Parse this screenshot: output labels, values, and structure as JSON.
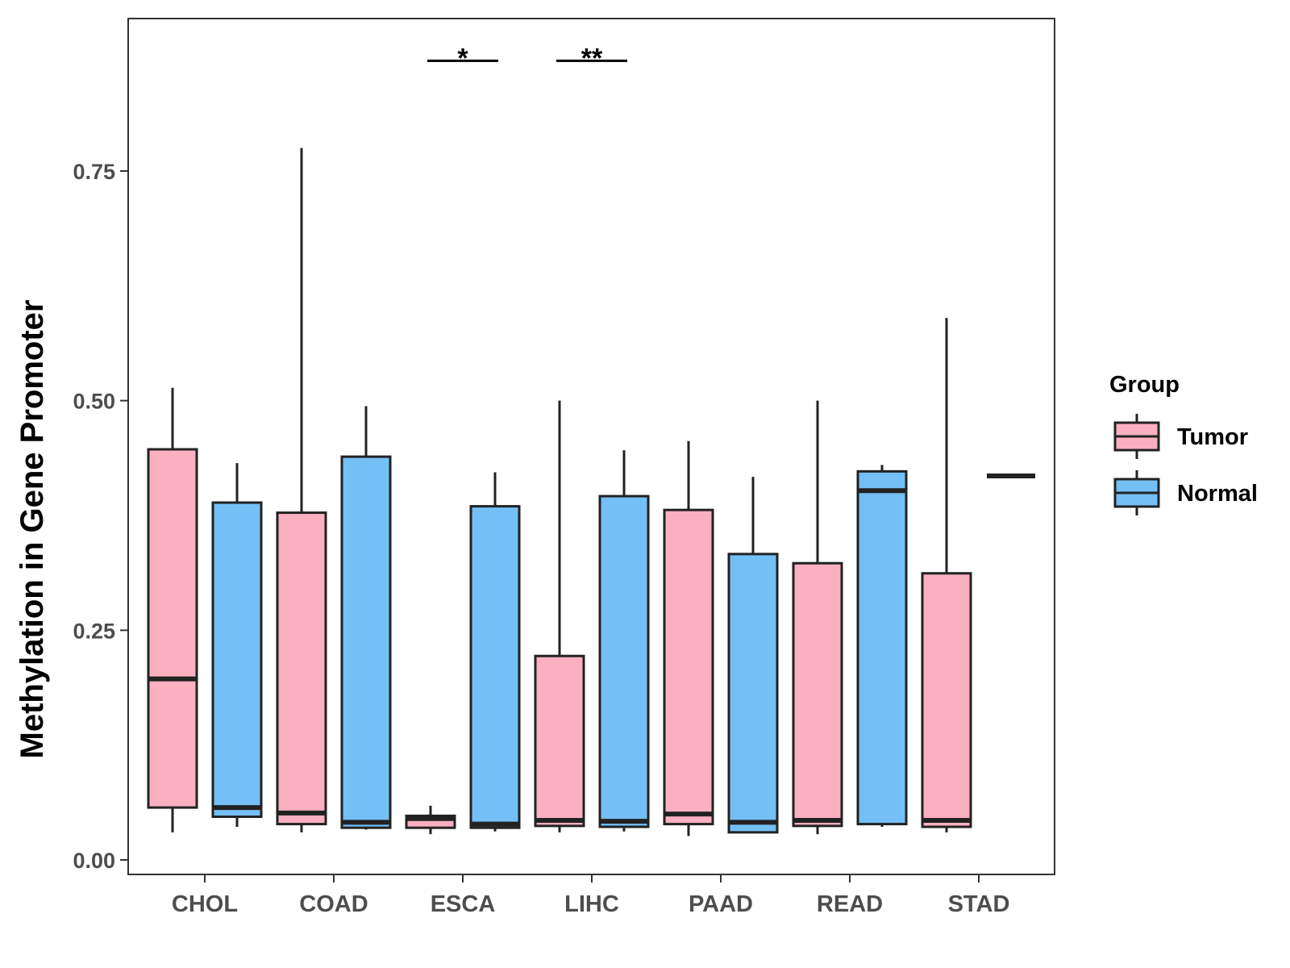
{
  "chart_data": {
    "type": "box",
    "title": "",
    "xlabel": "",
    "ylabel": "Methylation in Gene Promoter",
    "ylim": [
      -0.015,
      0.92
    ],
    "yticks": [
      0.0,
      0.25,
      0.5,
      0.75
    ],
    "ytick_labels": [
      "0.00",
      "0.25",
      "0.50",
      "0.75"
    ],
    "categories": [
      "CHOL",
      "COAD",
      "ESCA",
      "LIHC",
      "PAAD",
      "READ",
      "STAD"
    ],
    "grid": false,
    "legend": {
      "title": "Group",
      "position": "right",
      "entries": [
        {
          "name": "Tumor",
          "color": "#FBB0C1"
        },
        {
          "name": "Normal",
          "color": "#74BFF6"
        }
      ]
    },
    "series": [
      {
        "name": "Tumor",
        "color": "#FBB0C1",
        "boxes": [
          {
            "category": "CHOL",
            "min": 0.03,
            "q1": 0.057,
            "median": 0.197,
            "q3": 0.447,
            "max": 0.514
          },
          {
            "category": "COAD",
            "min": 0.03,
            "q1": 0.039,
            "median": 0.051,
            "q3": 0.378,
            "max": 0.775
          },
          {
            "category": "ESCA",
            "min": 0.028,
            "q1": 0.035,
            "median": 0.045,
            "q3": 0.048,
            "max": 0.059
          },
          {
            "category": "LIHC",
            "min": 0.03,
            "q1": 0.037,
            "median": 0.043,
            "q3": 0.222,
            "max": 0.5
          },
          {
            "category": "PAAD",
            "min": 0.026,
            "q1": 0.039,
            "median": 0.05,
            "q3": 0.381,
            "max": 0.456
          },
          {
            "category": "READ",
            "min": 0.028,
            "q1": 0.037,
            "median": 0.043,
            "q3": 0.323,
            "max": 0.5
          },
          {
            "category": "STAD",
            "min": 0.03,
            "q1": 0.036,
            "median": 0.043,
            "q3": 0.312,
            "max": 0.59
          }
        ]
      },
      {
        "name": "Normal",
        "color": "#74BFF6",
        "boxes": [
          {
            "category": "CHOL",
            "min": 0.036,
            "q1": 0.047,
            "median": 0.057,
            "q3": 0.389,
            "max": 0.432
          },
          {
            "category": "COAD",
            "min": 0.033,
            "q1": 0.035,
            "median": 0.041,
            "q3": 0.439,
            "max": 0.494
          },
          {
            "category": "ESCA",
            "min": 0.031,
            "q1": 0.035,
            "median": 0.039,
            "q3": 0.385,
            "max": 0.422
          },
          {
            "category": "LIHC",
            "min": 0.031,
            "q1": 0.036,
            "median": 0.042,
            "q3": 0.396,
            "max": 0.446
          },
          {
            "category": "PAAD",
            "min": 0.03,
            "q1": 0.03,
            "median": 0.041,
            "q3": 0.333,
            "max": 0.417
          },
          {
            "category": "READ",
            "min": 0.036,
            "q1": 0.039,
            "median": 0.402,
            "q3": 0.423,
            "max": 0.43
          },
          {
            "category": "STAD",
            "min": 0.418,
            "q1": 0.418,
            "median": 0.418,
            "q3": 0.418,
            "max": 0.418
          }
        ]
      }
    ],
    "annotations": [
      {
        "category": "ESCA",
        "label": "*",
        "y": 0.87
      },
      {
        "category": "LIHC",
        "label": "**",
        "y": 0.87
      }
    ]
  }
}
